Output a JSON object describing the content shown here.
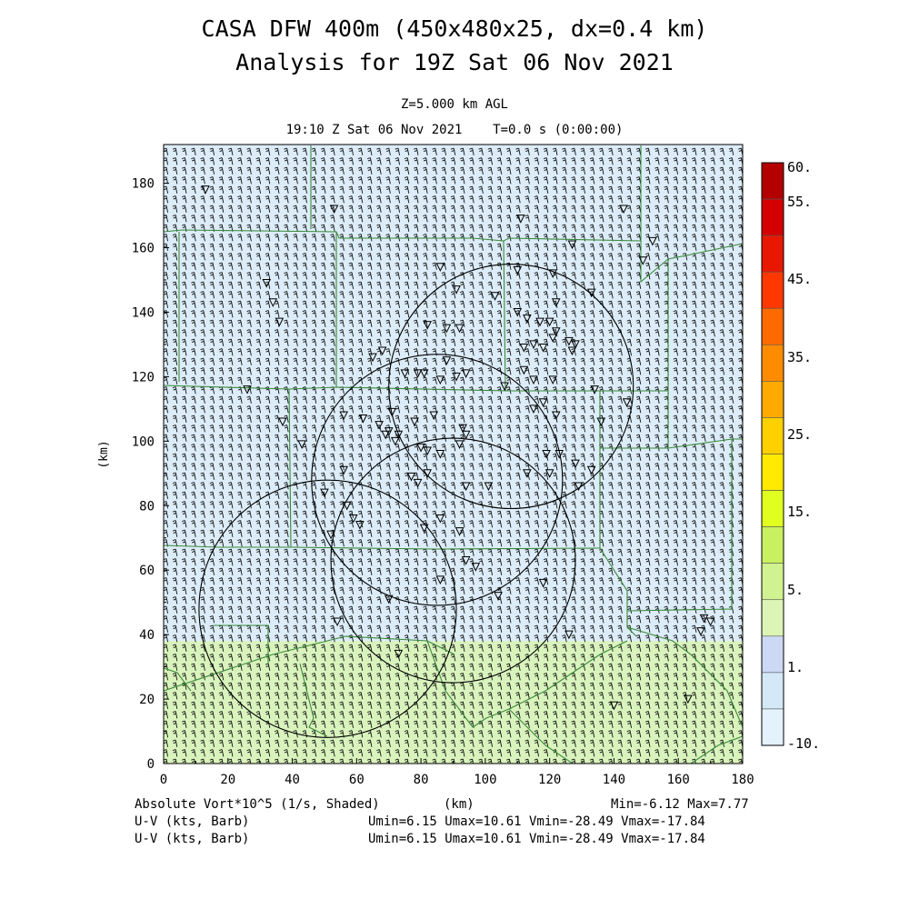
{
  "header": {
    "title_line1": "CASA DFW 400m (450x480x25, dx=0.4 km)",
    "title_line2": "Analysis for 19Z Sat 06 Nov 2021",
    "level": "Z=5.000 km AGL",
    "valid_time": "19:10 Z Sat 06 Nov 2021    T=0.0 s (0:00:00)"
  },
  "axes": {
    "x_label": "(km)",
    "y_label": "(km)",
    "x_range": [
      0,
      180
    ],
    "y_range": [
      0,
      192
    ],
    "x_ticks": [
      0,
      20,
      40,
      60,
      80,
      100,
      120,
      140,
      160,
      180
    ],
    "y_ticks": [
      0,
      20,
      40,
      60,
      80,
      100,
      120,
      140,
      160,
      180
    ]
  },
  "colorbar": {
    "labels": [
      "60.",
      "55.",
      "45.",
      "35.",
      "25.",
      "15.",
      "5.",
      "1.",
      "-10."
    ],
    "colors": [
      "#b30000",
      "#d40000",
      "#e81800",
      "#ff3800",
      "#ff6a00",
      "#ff8c00",
      "#ffaa00",
      "#ffd000",
      "#ffea00",
      "#e0ff20",
      "#c8f060",
      "#d0f290",
      "#dcf5b6",
      "#ccd8f4",
      "#d4e8f8",
      "#e4f2fb"
    ]
  },
  "field": {
    "name": "Absolute Vort*10^5 (1/s, Shaded)",
    "shading_bands": [
      {
        "from_km": 0,
        "to_km": 38,
        "color": "#d9f3bd"
      },
      {
        "from_km": 38,
        "to_km": 192,
        "color": "#dcecf8"
      }
    ],
    "min_max": "Min=-6.12 Max=7.77"
  },
  "footer": {
    "line1_left": "Absolute Vort*10^5 (1/s, Shaded)",
    "line1_mid": "(km)",
    "line1_right": "Min=-6.12 Max=7.77",
    "line2_left": "U-V (kts, Barb)",
    "line2_right": "Umin=6.15 Umax=10.61 Vmin=-28.49 Vmax=-17.84",
    "line3_left": "U-V (kts, Barb)",
    "line3_right": "Umin=6.15 Umax=10.61 Vmin=-28.49 Vmax=-17.84"
  },
  "radar_rings": [
    {
      "cx_km": 108,
      "cy_km": 117,
      "r_km": 38
    },
    {
      "cx_km": 85,
      "cy_km": 88,
      "r_km": 39
    },
    {
      "cx_km": 90,
      "cy_km": 63,
      "r_km": 38
    },
    {
      "cx_km": 51,
      "cy_km": 48,
      "r_km": 40
    }
  ],
  "stations_km": [
    [
      13,
      178
    ],
    [
      53,
      172
    ],
    [
      111,
      169
    ],
    [
      143,
      172
    ],
    [
      152,
      162
    ],
    [
      127,
      161
    ],
    [
      149,
      156
    ],
    [
      86,
      154
    ],
    [
      110,
      153
    ],
    [
      121,
      152
    ],
    [
      91,
      147
    ],
    [
      103,
      145
    ],
    [
      122,
      143
    ],
    [
      133,
      146
    ],
    [
      32,
      149
    ],
    [
      34,
      143
    ],
    [
      36,
      137
    ],
    [
      82,
      136
    ],
    [
      88,
      135
    ],
    [
      92,
      135
    ],
    [
      110,
      140
    ],
    [
      113,
      138
    ],
    [
      117,
      137
    ],
    [
      120,
      137
    ],
    [
      122,
      134
    ],
    [
      121,
      132
    ],
    [
      118,
      129
    ],
    [
      115,
      130
    ],
    [
      126,
      131
    ],
    [
      128,
      130
    ],
    [
      127,
      128
    ],
    [
      112,
      129
    ],
    [
      65,
      126
    ],
    [
      68,
      128
    ],
    [
      75,
      121
    ],
    [
      79,
      121
    ],
    [
      81,
      121
    ],
    [
      88,
      125
    ],
    [
      94,
      121
    ],
    [
      91,
      120
    ],
    [
      86,
      119
    ],
    [
      112,
      122
    ],
    [
      115,
      119
    ],
    [
      121,
      119
    ],
    [
      26,
      116
    ],
    [
      37,
      106
    ],
    [
      56,
      108
    ],
    [
      62,
      107
    ],
    [
      67,
      105
    ],
    [
      70,
      103
    ],
    [
      72,
      100
    ],
    [
      73,
      102
    ],
    [
      69,
      102
    ],
    [
      71,
      109
    ],
    [
      78,
      106
    ],
    [
      84,
      108
    ],
    [
      93,
      104
    ],
    [
      94,
      102
    ],
    [
      92,
      99
    ],
    [
      80,
      98
    ],
    [
      82,
      97
    ],
    [
      86,
      96
    ],
    [
      106,
      117
    ],
    [
      115,
      110
    ],
    [
      118,
      112
    ],
    [
      122,
      108
    ],
    [
      134,
      116
    ],
    [
      144,
      112
    ],
    [
      136,
      106
    ],
    [
      43,
      99
    ],
    [
      56,
      91
    ],
    [
      50,
      84
    ],
    [
      57,
      80
    ],
    [
      59,
      76
    ],
    [
      61,
      74
    ],
    [
      77,
      89
    ],
    [
      79,
      87
    ],
    [
      82,
      90
    ],
    [
      94,
      86
    ],
    [
      101,
      86
    ],
    [
      113,
      90
    ],
    [
      120,
      90
    ],
    [
      129,
      86
    ],
    [
      128,
      93
    ],
    [
      119,
      96
    ],
    [
      123,
      96
    ],
    [
      133,
      91
    ],
    [
      81,
      73
    ],
    [
      86,
      76
    ],
    [
      92,
      72
    ],
    [
      94,
      63
    ],
    [
      86,
      57
    ],
    [
      97,
      61
    ],
    [
      104,
      52
    ],
    [
      118,
      56
    ],
    [
      126,
      40
    ],
    [
      52,
      71
    ],
    [
      54,
      44
    ],
    [
      70,
      51
    ],
    [
      73,
      34
    ],
    [
      140,
      18
    ],
    [
      163,
      20
    ],
    [
      170,
      44
    ],
    [
      167,
      41
    ],
    [
      168,
      45
    ]
  ]
}
